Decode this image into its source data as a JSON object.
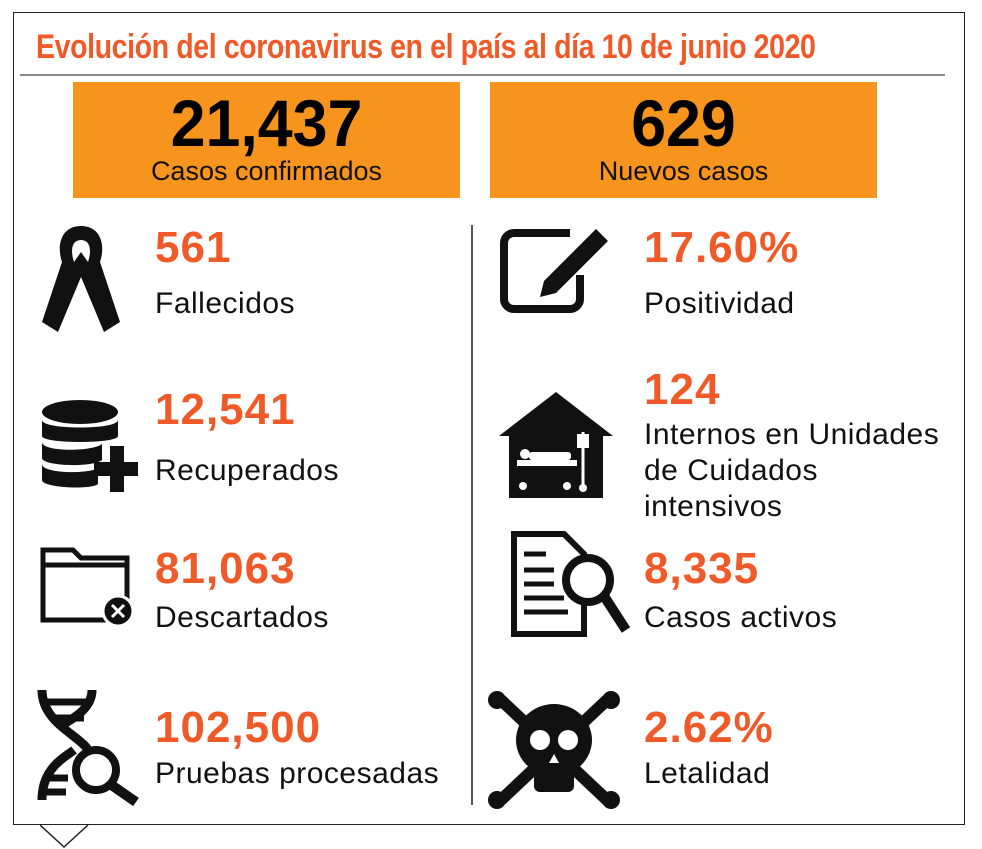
{
  "title": "Evolución del coronavirus en el país al día 10 de junio 2020",
  "headline": [
    {
      "value": "21,437",
      "label": "Casos confirmados"
    },
    {
      "value": "629",
      "label": "Nuevos casos"
    }
  ],
  "stats_left": [
    {
      "value": "561",
      "label": "Fallecidos",
      "icon": "ribbon-icon"
    },
    {
      "value": "12,541",
      "label": "Recuperados",
      "icon": "database-plus-icon"
    },
    {
      "value": "81,063",
      "label": "Descartados",
      "icon": "folder-remove-icon"
    },
    {
      "value": "102,500",
      "label": "Pruebas procesadas",
      "icon": "dna-search-icon"
    }
  ],
  "stats_right": [
    {
      "value": "17.60%",
      "label": "Positividad",
      "icon": "edit-icon"
    },
    {
      "value": "124",
      "label": "Internos en Unidades de Cuidados intensivos",
      "icon": "hospital-bed-icon"
    },
    {
      "value": "8,335",
      "label": "Casos activos",
      "icon": "document-search-icon"
    },
    {
      "value": "2.62%",
      "label": "Letalidad",
      "icon": "skull-icon"
    }
  ],
  "colors": {
    "accent": "#ef5a28",
    "box": "#f7941d"
  }
}
